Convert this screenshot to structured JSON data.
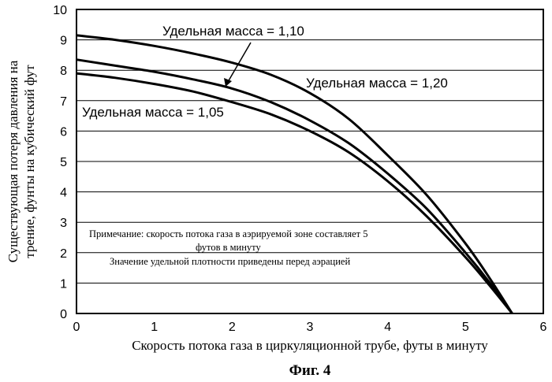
{
  "chart_data": {
    "type": "line",
    "title": "",
    "xlabel": "Скорость потока газа в циркуляционной трубе, футы в минуту",
    "ylabel_line1": "Существующая потеря давления на",
    "ylabel_line2": "трение, фунты на кубический фут",
    "xlim": [
      0,
      6
    ],
    "ylim": [
      0,
      10
    ],
    "x_ticks": [
      "0",
      "1",
      "2",
      "3",
      "4",
      "5",
      "6"
    ],
    "y_ticks": [
      "0",
      "1",
      "2",
      "3",
      "4",
      "5",
      "6",
      "7",
      "8",
      "9",
      "10"
    ],
    "grid": "horizontal",
    "series": [
      {
        "name": "Удельная масса = 1,20",
        "x": [
          0,
          0.5,
          1,
          1.5,
          2,
          2.5,
          3,
          3.5,
          4,
          4.5,
          5,
          5.3,
          5.6
        ],
        "y": [
          9.15,
          9.0,
          8.8,
          8.55,
          8.25,
          7.85,
          7.25,
          6.4,
          5.2,
          3.9,
          2.3,
          1.2,
          0
        ]
      },
      {
        "name": "Удельная масса = 1,10",
        "x": [
          0,
          0.5,
          1,
          1.5,
          2,
          2.5,
          3,
          3.5,
          4,
          4.5,
          5,
          5.3,
          5.6
        ],
        "y": [
          8.35,
          8.15,
          7.95,
          7.7,
          7.4,
          6.95,
          6.35,
          5.6,
          4.6,
          3.45,
          2.0,
          1.05,
          0
        ]
      },
      {
        "name": "Удельная масса = 1,05",
        "x": [
          0,
          0.5,
          1,
          1.5,
          2,
          2.5,
          3,
          3.5,
          4,
          4.5,
          5,
          5.3,
          5.6
        ],
        "y": [
          7.9,
          7.75,
          7.55,
          7.3,
          6.95,
          6.55,
          6.0,
          5.3,
          4.35,
          3.2,
          1.85,
          0.95,
          0
        ]
      }
    ],
    "annotations": {
      "note_line1": "Примечание: скорость потока газа в аэрируемой зоне составляет 5",
      "note_line2": "футов в минуту",
      "note_line3": "Значение удельной плотности приведены перед аэрацией"
    },
    "figure_caption": "Фиг. 4"
  }
}
